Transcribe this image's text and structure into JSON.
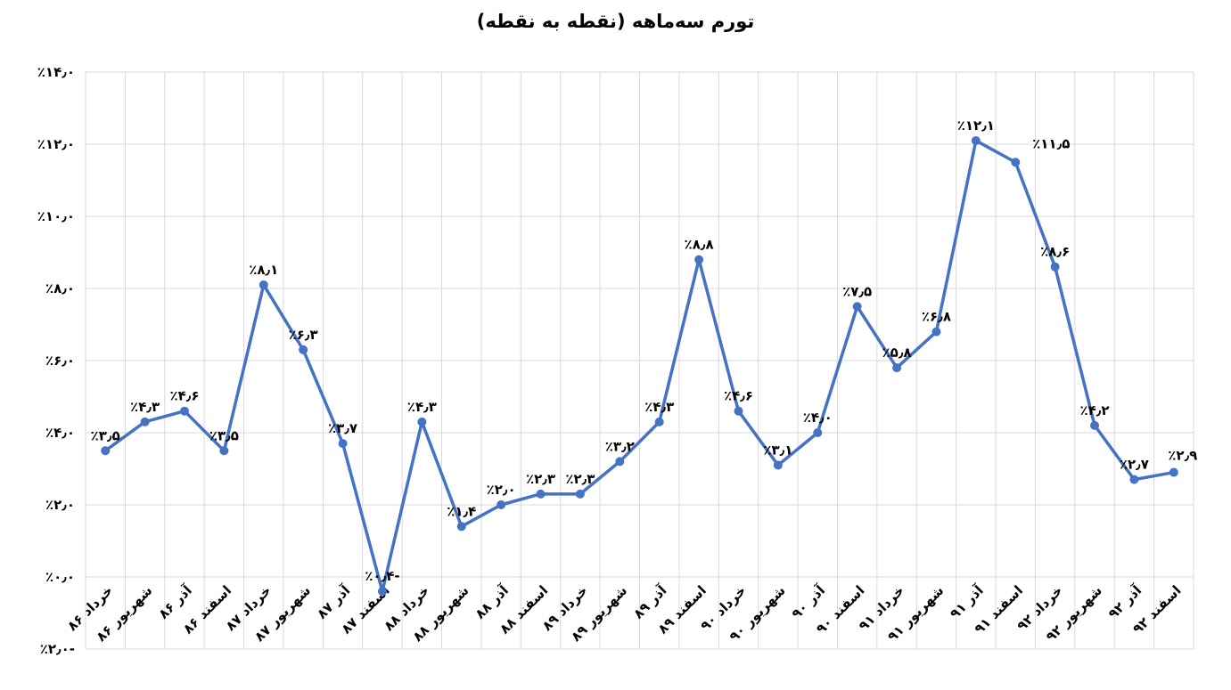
{
  "chart_data": {
    "type": "line",
    "title": "تورم سه‌ماهه (نقطه به نقطه)",
    "xlabel": "",
    "ylabel": "",
    "legend": "none",
    "grid": true,
    "ylim": [
      -2.0,
      14.0
    ],
    "categories": [
      "خرداد ۸۶",
      "شهریور ۸۶",
      "آذر ۸۶",
      "اسفند ۸۶",
      "خرداد ۸۷",
      "شهریور ۸۷",
      "آذر ۸۷",
      "اسفند ۸۷",
      "خرداد ۸۸",
      "شهریور ۸۸",
      "آذر ۸۸",
      "اسفند ۸۸",
      "خرداد ۸۹",
      "شهریور ۸۹",
      "آذر ۸۹",
      "اسفند ۸۹",
      "خرداد ۹۰",
      "شهریور ۹۰",
      "آذر ۹۰",
      "اسفند ۹۰",
      "خرداد ۹۱",
      "شهریور ۹۱",
      "آذر ۹۱",
      "اسفند ۹۱",
      "خرداد ۹۲",
      "شهریور ۹۲",
      "آذر ۹۲",
      "اسفند ۹۲"
    ],
    "values": [
      3.5,
      4.3,
      4.6,
      3.5,
      8.1,
      6.3,
      3.7,
      -0.4,
      4.3,
      1.4,
      2.0,
      2.3,
      2.3,
      3.2,
      4.3,
      8.8,
      4.6,
      3.1,
      4.0,
      7.5,
      5.8,
      6.8,
      12.1,
      11.5,
      8.6,
      4.2,
      2.7,
      2.9
    ],
    "point_labels": [
      "٪۳٫۵",
      "٪۴٫۳",
      "٪۴٫۶",
      "٪۳٫۵",
      "٪۸٫۱",
      "٪۶٫۳",
      "٪۳٫۷",
      "٪۰٫۴-",
      "٪۴٫۳",
      "٪۱٫۴",
      "٪۲٫۰",
      "٪۲٫۳",
      "٪۲٫۳",
      "٪۳٫۲",
      "٪۴٫۳",
      "٪۸٫۸",
      "٪۴٫۶",
      "٪۳٫۱",
      "٪۴٫۰",
      "٪۷٫۵",
      "٪۵٫۸",
      "٪۶٫۸",
      "٪۱۲٫۱",
      "٪۱۱٫۵",
      "٪۸٫۶",
      "٪۴٫۲",
      "٪۲٫۷",
      "٪۲٫۹"
    ],
    "y_axis": {
      "min": -2.0,
      "max": 14.0,
      "step": 2.0,
      "tick_values": [
        14,
        12,
        10,
        8,
        6,
        4,
        2,
        0,
        -2
      ],
      "tick_labels": [
        "٪۱۴٫۰",
        "٪۱۲٫۰",
        "٪۱۰٫۰",
        "٪۸٫۰",
        "٪۶٫۰",
        "٪۴٫۰",
        "٪۲٫۰",
        "٪۰٫۰",
        "٪۲٫۰-"
      ]
    },
    "colors": {
      "line": "#4472C4",
      "marker": "#4472C4",
      "gridline": "#D9D9D9",
      "label_text": "#000000",
      "title_text": "#000000",
      "background": "#FFFFFF"
    }
  }
}
